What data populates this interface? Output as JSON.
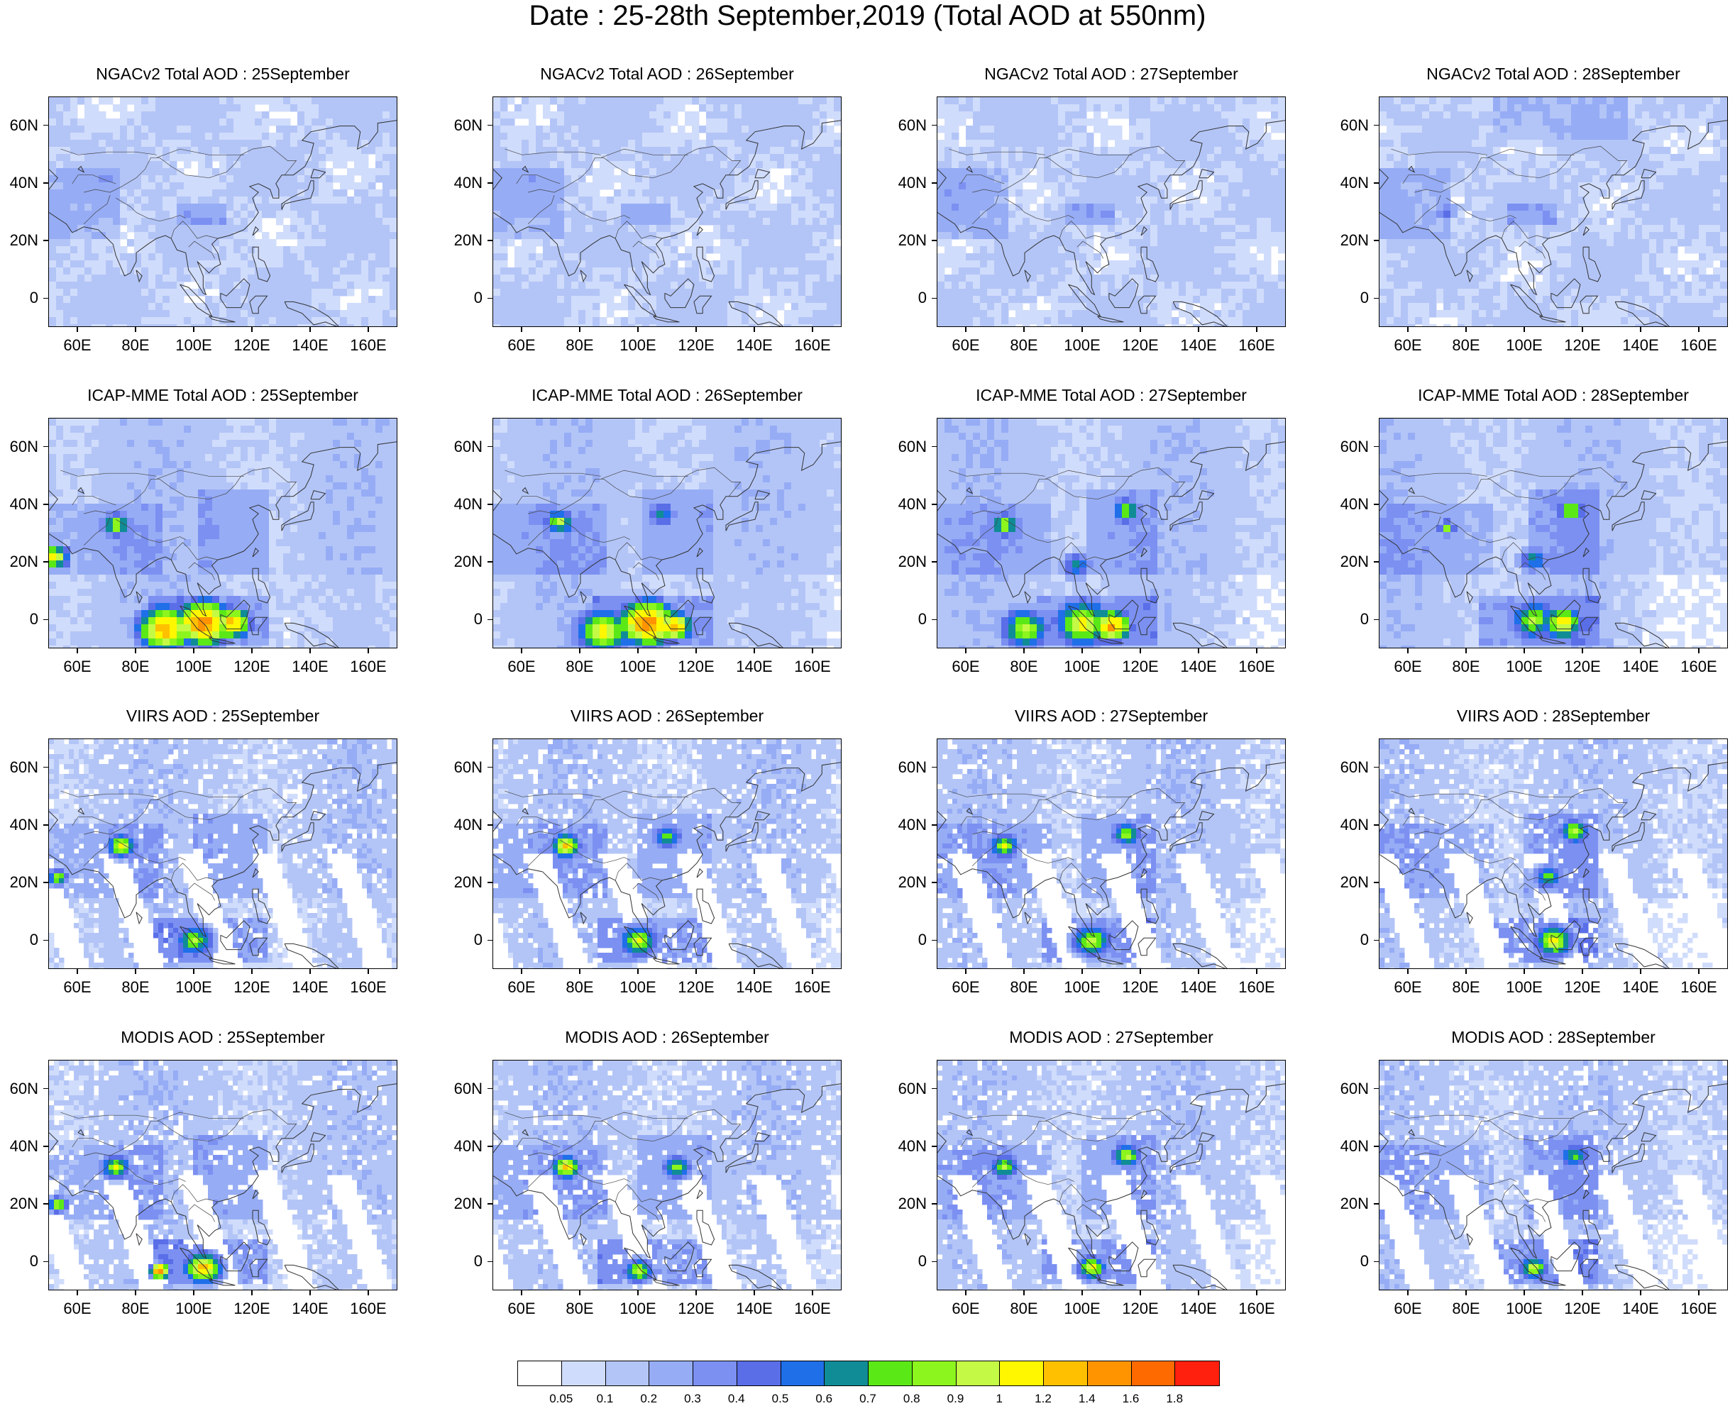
{
  "title": "Date : 25-28th September,2019 (Total AOD at 550nm)",
  "axes": {
    "x_ticks": [
      "60E",
      "80E",
      "100E",
      "120E",
      "140E",
      "160E"
    ],
    "y_ticks": [
      "60N",
      "40N",
      "20N",
      "0"
    ],
    "lon_range": [
      50,
      170
    ],
    "lat_range": [
      -10,
      70
    ],
    "x_values": [
      60,
      80,
      100,
      120,
      140,
      160
    ],
    "y_values": [
      60,
      40,
      20,
      0
    ]
  },
  "rows": [
    {
      "id": "ngacv2",
      "kind": "model"
    },
    {
      "id": "icap",
      "kind": "model"
    },
    {
      "id": "viirs",
      "kind": "satellite"
    },
    {
      "id": "modis",
      "kind": "satellite"
    }
  ],
  "panel_titles": [
    [
      "NGACv2 Total AOD : 25September",
      "NGACv2 Total AOD : 26September",
      "NGACv2 Total AOD : 27September",
      "NGACv2 Total AOD : 28September"
    ],
    [
      "ICAP-MME Total AOD : 25September",
      "ICAP-MME Total AOD : 26September",
      "ICAP-MME Total AOD : 27September",
      "ICAP-MME Total AOD : 28September"
    ],
    [
      "VIIRS AOD : 25September",
      "VIIRS AOD : 26September",
      "VIIRS AOD : 27September",
      "VIIRS AOD : 28September"
    ],
    [
      "MODIS AOD : 25September",
      "MODIS AOD : 26September",
      "MODIS AOD : 27September",
      "MODIS AOD : 28September"
    ]
  ],
  "colorbar": {
    "labels": [
      "0.05",
      "0.1",
      "0.2",
      "0.3",
      "0.4",
      "0.5",
      "0.6",
      "0.7",
      "0.8",
      "0.9",
      "1",
      "1.2",
      "1.4",
      "1.6",
      "1.8"
    ],
    "colors": [
      "#ffffff",
      "#d0dcfb",
      "#b3c5f7",
      "#96acf5",
      "#7b90f1",
      "#5a6ee8",
      "#1f6fe9",
      "#108c96",
      "#5be817",
      "#8cf51d",
      "#c4fa45",
      "#fff700",
      "#ffc000",
      "#ff9400",
      "#ff6a00",
      "#ff200d"
    ]
  },
  "hotspots": [
    [
      [],
      [],
      [],
      [
        [
          73,
          30,
          2,
          0.35
        ]
      ]
    ],
    [
      [
        [
          52,
          22,
          3,
          1.1
        ],
        [
          73,
          33,
          3,
          0.9
        ],
        [
          90,
          -3,
          6,
          1.3
        ],
        [
          103,
          -1,
          6,
          1.5
        ],
        [
          113,
          -1,
          4,
          1.3
        ]
      ],
      [
        [
          73,
          34,
          3,
          0.9
        ],
        [
          108,
          37,
          3,
          0.6
        ],
        [
          88,
          -4,
          6,
          1.0
        ],
        [
          103,
          -1,
          6,
          1.5
        ],
        [
          112,
          -2,
          4,
          1.3
        ]
      ],
      [
        [
          73,
          33,
          3,
          0.9
        ],
        [
          115,
          38,
          3,
          0.8
        ],
        [
          98,
          19,
          3,
          0.6
        ],
        [
          80,
          -3,
          5,
          0.9
        ],
        [
          100,
          -1,
          6,
          1.0
        ],
        [
          110,
          -2,
          4,
          1.4
        ]
      ],
      [
        [
          73,
          32,
          2,
          0.7
        ],
        [
          116,
          38,
          3,
          0.8
        ],
        [
          103,
          21,
          3,
          0.6
        ],
        [
          103,
          0,
          5,
          0.8
        ],
        [
          113,
          -1,
          4,
          1.1
        ]
      ]
    ],
    [
      [
        [
          75,
          33,
          3,
          1.0
        ],
        [
          53,
          22,
          2,
          0.9
        ],
        [
          100,
          0,
          4,
          0.8
        ]
      ],
      [
        [
          75,
          33,
          3,
          1.2
        ],
        [
          110,
          36,
          3,
          0.7
        ],
        [
          100,
          0,
          4,
          0.9
        ]
      ],
      [
        [
          73,
          33,
          3,
          0.9
        ],
        [
          115,
          37,
          3,
          0.8
        ],
        [
          103,
          0,
          4,
          0.9
        ]
      ],
      [
        [
          117,
          38,
          3,
          0.9
        ],
        [
          108,
          22,
          3,
          0.7
        ],
        [
          110,
          0,
          4,
          1.0
        ]
      ]
    ],
    [
      [
        [
          73,
          33,
          3,
          0.9
        ],
        [
          53,
          20,
          2,
          0.9
        ],
        [
          103,
          -2,
          4,
          1.2
        ],
        [
          88,
          -3,
          2,
          1.6
        ]
      ],
      [
        [
          75,
          33,
          3,
          1.1
        ],
        [
          113,
          33,
          3,
          0.8
        ],
        [
          100,
          -3,
          3,
          0.9
        ]
      ],
      [
        [
          73,
          33,
          3,
          0.8
        ],
        [
          115,
          37,
          3,
          0.9
        ],
        [
          103,
          -2,
          3,
          1.0
        ]
      ],
      [
        [
          117,
          37,
          3,
          0.7
        ],
        [
          103,
          -2,
          3,
          0.9
        ]
      ]
    ]
  ]
}
